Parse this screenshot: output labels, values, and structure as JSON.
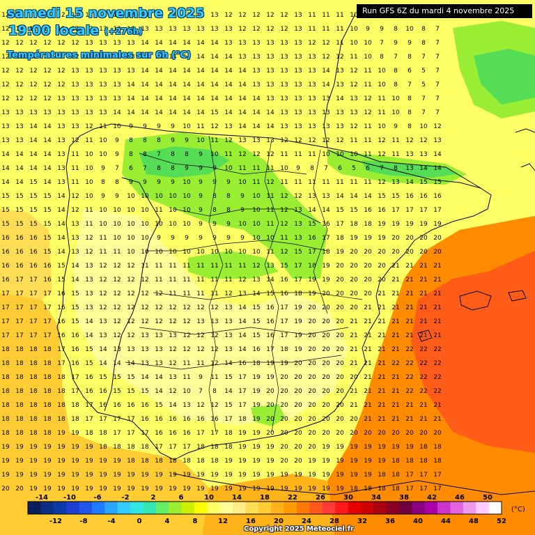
{
  "header": {
    "date": "samedi 15 novembre 2025",
    "time": "19:00 locale",
    "lead": "(+276h)",
    "subtitle": "Températures minimales sur 6h (°C)"
  },
  "run_label": "Run GFS 6Z du mardi 4 novembre 2025",
  "copyright": "Copyright 2025 Meteociel.fr",
  "legend": {
    "unit": "(°C)",
    "top_labels": [
      "-14",
      "-10",
      "-6",
      "-2",
      "2",
      "6",
      "10",
      "14",
      "18",
      "22",
      "26",
      "30",
      "34",
      "38",
      "42",
      "46",
      "50"
    ],
    "bottom_labels": [
      "-12",
      "-8",
      "-4",
      "0",
      "4",
      "8",
      "12",
      "16",
      "20",
      "24",
      "28",
      "32",
      "36",
      "40",
      "44",
      "48",
      "52"
    ],
    "colors": [
      "#0a1f5c",
      "#0b2f80",
      "#0a3aa8",
      "#1e3fd0",
      "#2255ee",
      "#1f7bff",
      "#2aa6ff",
      "#33ccff",
      "#33e6e6",
      "#33e6b3",
      "#66ee66",
      "#99ee33",
      "#ccf000",
      "#ffff00",
      "#ffff66",
      "#ffff99",
      "#ffee88",
      "#ffdd55",
      "#ffcc33",
      "#ffb31a",
      "#ff9900",
      "#ff7a00",
      "#ff5a1a",
      "#ff3b3b",
      "#ff1a1a",
      "#e60000",
      "#cc0000",
      "#aa0010",
      "#8a0020",
      "#6e0040",
      "#8a0080",
      "#aa00aa",
      "#cc33cc",
      "#e066e0",
      "#ee99ee",
      "#ffccff",
      "#ffffff"
    ]
  },
  "map": {
    "region": "Iberian Peninsula and Balearic Islands",
    "colors": {
      "sea_yellow": "#ffff66",
      "pale": "#ffff99",
      "light_orange": "#ffcc33",
      "orange": "#ff8c00",
      "red_orange": "#ff5c1a",
      "light_green": "#99ee33",
      "green": "#55dd55",
      "border": "#000000"
    },
    "value_grid": [
      "12 12 12 12 12 12 12 12 12 13 13 13 13 13 13 13 12 12 12 12 12 13 11 11 11 10 9 9 8 10 8 7",
      "12 12 12 12 12 12 12 13 13 13 13 13 13 13 13 13 13 12 12 12 12 13 11 11 11 10 9 9 8 10 8 7",
      "12 12 12 12 12 12 13 13 13 13 14 14 14 14 14 14 13 13 13 13 13 13 12 12 11 10 10 7 9 9 8 7",
      "12 12 12 12 12 12 13 13 13 13 14 14 14 14 14 14 14 13 13 13 13 13 13 12 12 11 10 8 7 8 7 7",
      "12 12 12 12 12 13 13 13 13 13 14 14 14 14 14 14 14 14 13 13 13 13 13 14 13 12 11 10 8 6 5 7",
      "12 12 12 12 12 13 13 13 13 14 14 14 14 14 14 14 14 14 13 13 13 13 13 14 13 12 11 10 8 7 5 7",
      "12 12 12 12 13 13 13 13 13 14 14 14 14 14 14 14 14 14 14 13 13 13 13 13 14 13 12 11 10 8 7 7",
      "13 13 13 13 13 13 13 13 14 14 14 14 14 14 14 15 14 14 14 14 13 13 13 13 13 13 12 11 10 8 7 7",
      "13 13 14 14 13 13 12 11 10 9 9 9 9 10 11 12 13 14 14 14 13 13 13 13 13 12 11 10 9 8 10 12",
      "13 13 14 14 13 12 11 10 9 8 8 8 9 9 10 11 12 13 13 13 12 12 12 12 12 11 11 12 11 12 12 13",
      "14 14 14 14 13 11 10 10 9 8 8 7 8 8 9 10 11 12 12 12 11 11 11 10 10 10 11 12 11 13 13 14",
      "14 14 14 14 13 11 10 9 7 6 7 8 8 9 9 9 10 11 11 11 10 9 8 7 6 5 6 7 8 13 14 14",
      "14 14 15 14 13 11 10 8 8 9 9 9 9 10 9 9 9 10 11 12 11 11 11 11 11 11 11 12 13 14 15 15",
      "15 15 15 15 14 12 10 9 9 10 10 10 10 10 9 8 8 9 10 11 12 12 13 13 14 14 14 15 15 16 16 16",
      "15 15 15 15 14 12 11 10 10 10 10 11 10 10 9 8 8 9 10 11 12 13 14 14 15 15 16 16 17 17 17 17",
      "15 15 15 15 14 13 11 10 10 10 10 10 10 10 9 9 9 10 10 11 12 13 15 16 17 18 18 19 19 19 19 19",
      "16 16 16 15 14 13 12 11 10 10 10 9 9 9 9 9 9 9 10 10 11 13 16 17 18 19 19 19 20 20 20 20",
      "16 16 16 15 14 13 12 11 11 10 10 10 10 10 10 10 10 10 10 11 12 15 17 18 19 20 20 20 20 20 20 20",
      "16 16 16 16 15 14 13 12 12 12 11 11 11 11 11 11 11 11 12 13 15 17 18 19 20 20 20 20 21 21 21 21",
      "16 17 17 16 15 14 13 12 12 12 12 11 11 11 11 11 11 12 13 14 16 17 19 19 20 20 20 20 21 21 21 21",
      "17 17 17 17 16 15 13 12 12 12 12 12 11 11 11 11 12 13 14 15 16 18 19 20 20 20 20 21 21 21 21 21",
      "17 17 17 17 16 15 13 12 12 12 12 12 12 12 12 12 13 14 15 16 17 19 20 20 20 20 21 21 21 21 21 21",
      "17 17 17 17 16 15 14 13 12 12 12 12 12 12 13 13 13 14 15 16 17 19 20 20 20 21 21 21 21 21 21 21",
      "17 17 17 17 16 16 14 13 12 12 13 13 13 12 12 12 13 14 15 16 17 19 20 20 20 21 21 21 21 21 21 21",
      "18 18 18 18 17 16 15 14 13 13 13 13 12 12 12 12 13 14 16 17 18 19 20 20 20 21 21 21 21 22 22 22",
      "18 18 18 18 17 16 15 14 14 14 13 13 12 11 11 12 14 16 18 19 19 20 20 20 20 21 21 21 22 22 22 22",
      "18 18 18 18 18 17 16 15 15 15 14 14 13 11 9 11 15 17 19 19 20 20 20 20 20 20 21 21 21 22 22 22",
      "18 18 18 18 18 17 16 16 15 15 15 14 12 10 7 8 14 17 19 20 20 20 20 20 20 21 21 21 21 22 22 22",
      "18 18 18 18 18 18 17 16 16 16 16 15 14 13 12 12 15 17 19 20 20 20 20 20 20 21 21 21 21 21 21 21",
      "18 18 18 18 18 18 17 17 17 17 16 16 16 16 16 16 17 18 19 20 20 20 20 20 20 20 21 21 21 21 21 21",
      "18 18 18 18 19 19 18 18 17 17 17 16 16 16 17 17 18 19 19 20 20 20 20 20 20 20 20 20 20 20 20 20",
      "19 19 19 19 19 19 19 18 18 18 18 17 17 17 18 18 18 19 19 19 20 20 20 19 19 19 19 19 19 19 18 18",
      "19 19 19 19 19 19 19 19 19 18 18 18 18 18 18 18 19 19 19 19 20 20 19 19 19 19 19 19 18 18 18 18",
      "19 19 19 19 19 19 19 19 19 19 19 19 19 19 19 19 19 19 19 19 19 19 19 19 19 19 19 18 18 17 17 17",
      "20 20 19 19 19 19 19 19 19 19 19 19 19 19 19 19 19 19 19 19 19 19 19 19 19 18 18 18 18 17 17 17",
      "20 20 20 20 19 19 19 19 19 19 19 19 19 19 19 19 19 19 19 19 19 19 19 18 18 18 18 18 18 17 17 17",
      "20 20 20 19 19 19 19 19 19 19 19 19 19 19 19 19 19 19 19 19 19 19 18 18 18 18 18 18 18 17 17 17",
      "20 20 20 20 19 19 19 19 19 19 19 19 19 19 19 19 19 19 19 19 19 19 18 18 18 18 18 18 18 17 17 17"
    ]
  }
}
